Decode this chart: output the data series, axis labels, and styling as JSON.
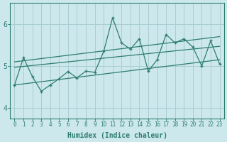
{
  "xlabel": "Humidex (Indice chaleur)",
  "bg_color": "#cce8ec",
  "line_color": "#2e7d72",
  "grid_color": "#aacdd4",
  "xlim": [
    -0.5,
    23.5
  ],
  "ylim": [
    3.75,
    6.5
  ],
  "yticks": [
    4,
    5,
    6
  ],
  "xticks": [
    0,
    1,
    2,
    3,
    4,
    5,
    6,
    7,
    8,
    9,
    10,
    11,
    12,
    13,
    14,
    15,
    16,
    17,
    18,
    19,
    20,
    21,
    22,
    23
  ],
  "main_data_x": [
    0,
    1,
    2,
    3,
    4,
    5,
    6,
    7,
    8,
    9,
    10,
    11,
    12,
    13,
    14,
    15,
    16,
    17,
    18,
    19,
    20,
    21,
    22,
    23
  ],
  "main_data_y": [
    4.55,
    5.2,
    4.75,
    4.4,
    4.55,
    4.7,
    4.87,
    4.72,
    4.88,
    4.85,
    5.35,
    6.15,
    5.55,
    5.4,
    5.65,
    4.88,
    5.15,
    5.75,
    5.55,
    5.65,
    5.45,
    5.0,
    5.6,
    5.05
  ],
  "upper_line_x": [
    0,
    23
  ],
  "upper_line_y": [
    5.1,
    5.7
  ],
  "middle_line_x": [
    0,
    23
  ],
  "middle_line_y": [
    4.97,
    5.47
  ],
  "lower_line_x": [
    0,
    23
  ],
  "lower_line_y": [
    4.55,
    5.15
  ]
}
